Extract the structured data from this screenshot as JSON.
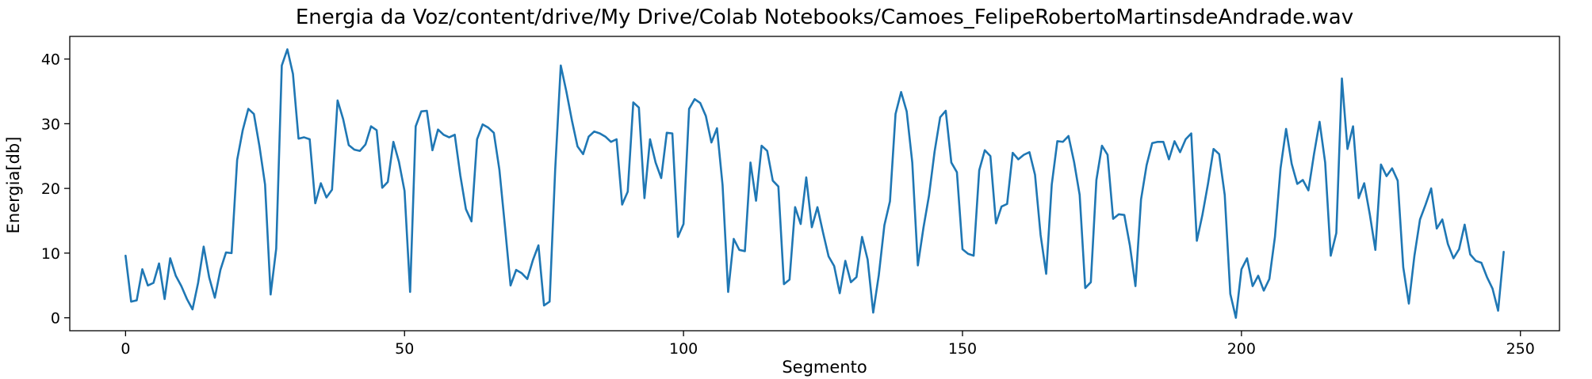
{
  "chart_data": {
    "type": "line",
    "title": "Energia da Voz/content/drive/My Drive/Colab Notebooks/Camoes_FelipeRobertoMartinsdeAndrade.wav",
    "xlabel": "Segmento",
    "ylabel": "Energia[db]",
    "xlim": [
      -10,
      257
    ],
    "ylim": [
      -2,
      43.5
    ],
    "xticks": [
      0,
      50,
      100,
      150,
      200,
      250
    ],
    "yticks": [
      0,
      10,
      20,
      30,
      40
    ],
    "grid": false,
    "line_color": "#1f77b4",
    "series": [
      {
        "values": [
          9.6,
          2.5,
          2.7,
          7.5,
          5.0,
          5.4,
          8.4,
          2.9,
          9.2,
          6.5,
          4.9,
          2.9,
          1.3,
          5.4,
          11.0,
          6.2,
          3.1,
          7.4,
          10.1,
          10.0,
          24.4,
          29.0,
          32.3,
          31.5,
          26.5,
          20.6,
          3.6,
          10.7,
          39.0,
          41.5,
          37.7,
          27.7,
          27.9,
          27.6,
          17.7,
          20.8,
          18.6,
          19.8,
          33.6,
          30.7,
          26.7,
          26.0,
          25.8,
          26.8,
          29.6,
          29.0,
          20.1,
          21.0,
          27.2,
          24.1,
          19.6,
          4.0,
          29.6,
          31.9,
          32.0,
          25.9,
          29.1,
          28.3,
          27.9,
          28.3,
          22.0,
          16.8,
          14.9,
          27.6,
          29.9,
          29.4,
          28.6,
          22.9,
          14.1,
          5.0,
          7.4,
          6.9,
          6.0,
          8.9,
          11.2,
          1.9,
          2.5,
          22.9,
          39.0,
          35.0,
          30.5,
          26.5,
          25.3,
          28.0,
          28.8,
          28.5,
          28.0,
          27.2,
          27.6,
          17.5,
          19.5,
          33.3,
          32.5,
          18.5,
          27.6,
          24.0,
          21.6,
          28.6,
          28.5,
          12.5,
          14.5,
          32.3,
          33.8,
          33.2,
          31.2,
          27.1,
          29.3,
          20.5,
          4.0,
          12.2,
          10.5,
          10.3,
          24.0,
          18.1,
          26.6,
          25.8,
          21.2,
          20.3,
          5.2,
          5.9,
          17.1,
          14.5,
          21.7,
          14.0,
          17.1,
          13.2,
          9.5,
          8.0,
          3.8,
          8.8,
          5.5,
          6.3,
          12.5,
          9.0,
          0.8,
          6.6,
          14.3,
          18.0,
          31.5,
          34.9,
          31.9,
          24.0,
          8.1,
          13.9,
          18.9,
          25.7,
          31.0,
          32.0,
          24.0,
          22.5,
          10.6,
          9.9,
          9.6,
          22.8,
          25.9,
          25.0,
          14.6,
          17.2,
          17.6,
          25.5,
          24.5,
          25.2,
          25.6,
          22.1,
          12.8,
          6.8,
          20.6,
          27.3,
          27.2,
          28.1,
          24.1,
          19.0,
          4.6,
          5.5,
          21.3,
          26.6,
          25.2,
          15.3,
          16.0,
          15.9,
          11.2,
          4.9,
          18.3,
          23.6,
          27.0,
          27.2,
          27.2,
          24.5,
          27.3,
          25.6,
          27.6,
          28.5,
          11.9,
          15.9,
          20.7,
          26.1,
          25.3,
          19.0,
          3.7,
          0.0,
          7.5,
          9.2,
          4.9,
          6.5,
          4.2,
          6.0,
          12.5,
          23.1,
          29.2,
          23.8,
          20.7,
          21.3,
          19.7,
          25.3,
          30.3,
          24.0,
          9.6,
          13.1,
          37.0,
          26.1,
          29.6,
          18.5,
          20.8,
          16.0,
          10.5,
          23.7,
          21.9,
          23.1,
          21.2,
          7.8,
          2.2,
          9.6,
          15.2,
          17.5,
          20.0,
          13.8,
          15.2,
          11.4,
          9.2,
          10.6,
          14.4,
          9.8,
          8.8,
          8.5,
          6.3,
          4.5,
          1.1,
          10.2
        ]
      }
    ]
  }
}
